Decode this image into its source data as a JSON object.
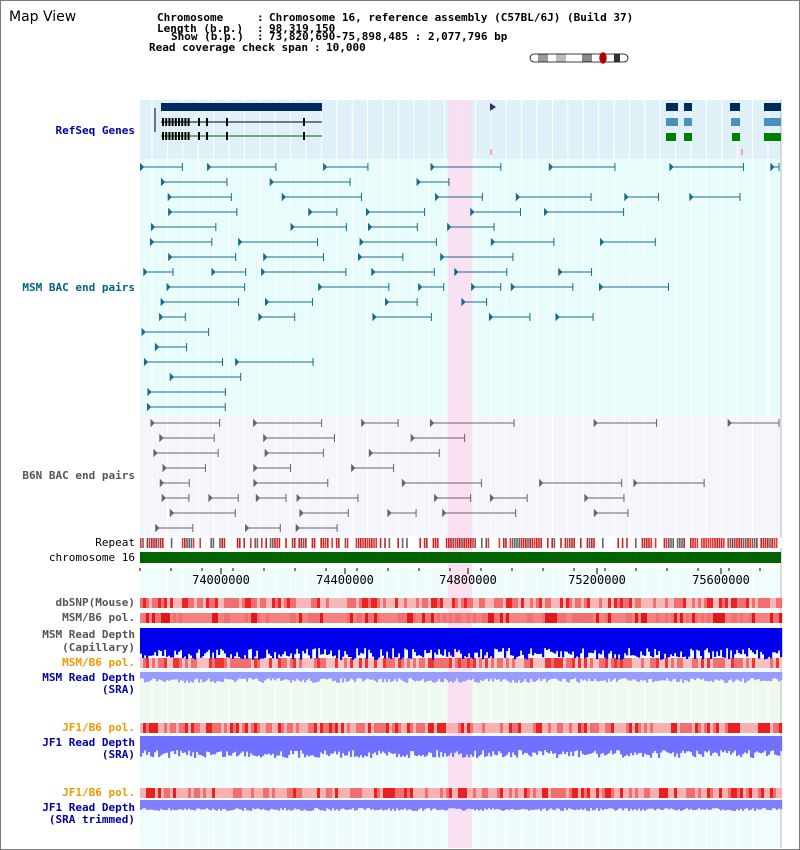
{
  "app": {
    "title": "Map View"
  },
  "info": {
    "chromosome_key": "Chromosome",
    "chromosome_val": "Chromosome 16, reference assembly (C57BL/6J) (Build 37)",
    "length_key": "Length (b.p.)",
    "length_val": "98,319,150",
    "show_key": "Show (b.p.)",
    "show_val": "73,820,690-75,898,485 : 2,077,796 bp",
    "coverage_key": "Read coverage check span",
    "coverage_val": "10,000"
  },
  "tracks": {
    "refseq": "RefSeq Genes",
    "msm_bac": "MSM BAC end pairs",
    "b6n_bac": "B6N BAC end pairs",
    "repeat": "Repeat",
    "chromosome": "chromosome 16",
    "dbsnp": "dbSNP(Mouse)",
    "msm_b6_pol": "MSM/B6 pol.",
    "msm_depth_cap_1": "MSM Read Depth",
    "msm_depth_cap_2": "(Capillary)",
    "msm_b6_pol_2": "MSM/B6 pol.",
    "msm_depth_sra_1": "MSM Read Depth",
    "msm_depth_sra_2": "(SRA)",
    "jf1_pol_1": "JF1/B6 pol.",
    "jf1_depth_1": "JF1 Read Depth",
    "jf1_depth_1b": "(SRA)",
    "jf1_pol_2": "JF1/B6 pol.",
    "jf1_depth_2": "JF1 Read Depth",
    "jf1_depth_2b": "(SRA trimmed)"
  },
  "axis": {
    "ticks": [
      "74000000",
      "74400000",
      "74800000",
      "75200000",
      "75600000"
    ]
  },
  "colors": {
    "refseq_bg": "#dff0f8",
    "track_bg": "#e8fcfc",
    "highlight": "#fadcf0",
    "refseq_label": "#0000aa",
    "msm_label": "#006680",
    "b6n_label": "#555555",
    "chromosome_bar": "#006400",
    "depth_blue": "#0000ee",
    "depth_light": "#8888ff",
    "orange_label": "#ee9900"
  }
}
